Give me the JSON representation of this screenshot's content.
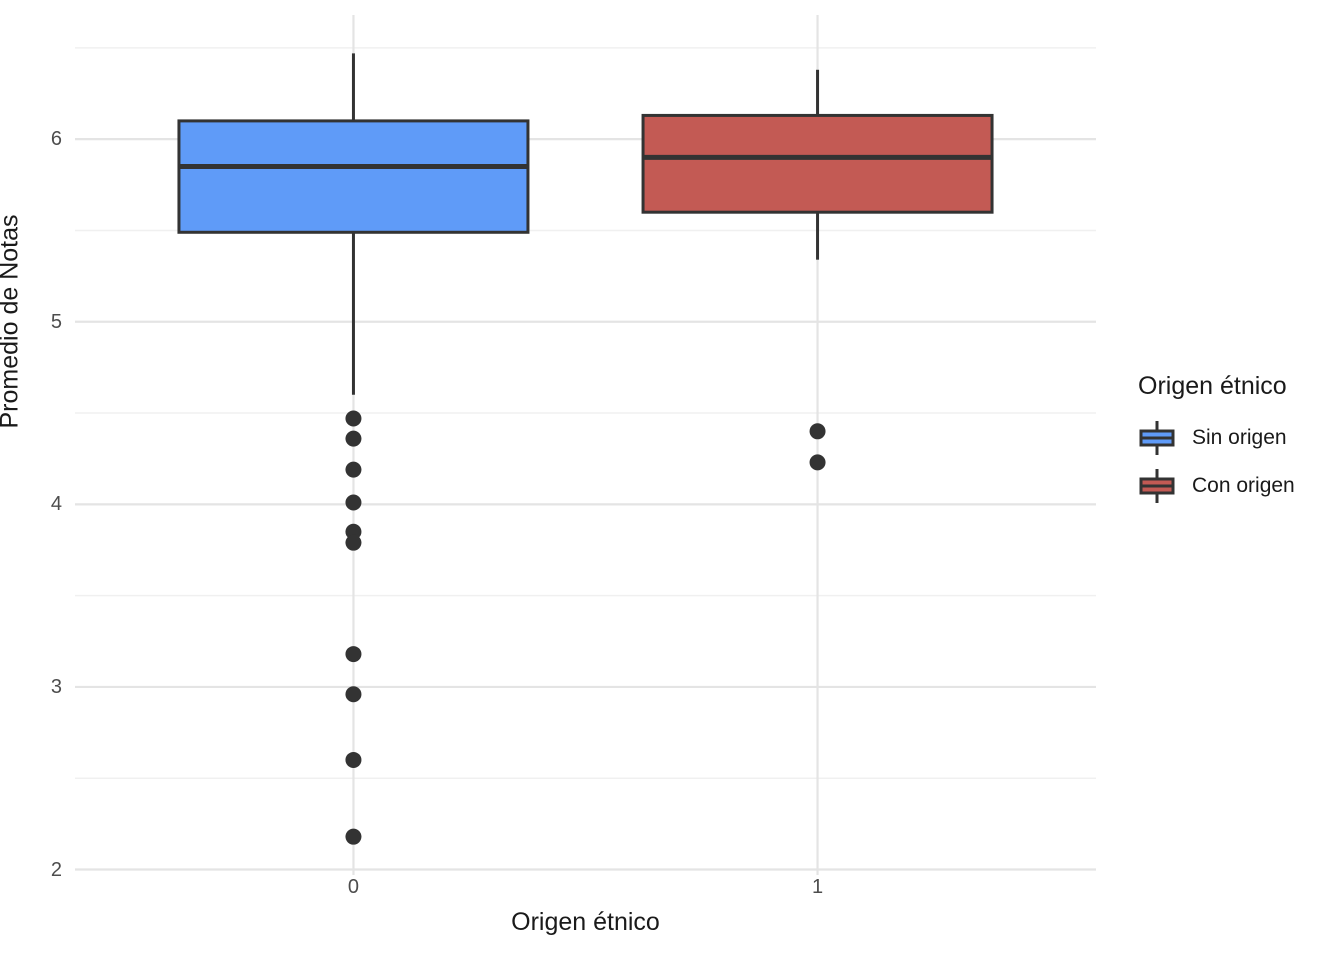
{
  "chart_data": {
    "type": "boxplot",
    "title": "",
    "xlabel": "Origen étnico",
    "ylabel": "Promedio de Notas",
    "categories": [
      "0",
      "1"
    ],
    "ylim": [
      1.97,
      6.68
    ],
    "yticks": [
      2,
      3,
      4,
      5,
      6
    ],
    "yticks_minor": [
      2.5,
      3.5,
      4.5,
      5.5,
      6.5
    ],
    "grid": "horizontal major+minor light gray, vertical major at each category, white background (ggplot theme_minimal)",
    "legend": {
      "title": "Origen étnico",
      "position": "right",
      "entries": [
        {
          "label": "Sin origen",
          "color": "#5F9BF8"
        },
        {
          "label": "Con origen",
          "color": "#C35A54"
        }
      ]
    },
    "series": [
      {
        "name": "Sin origen",
        "category": "0",
        "fill": "#5F9BF8",
        "whisker_high": 6.47,
        "q3": 6.1,
        "median": 5.85,
        "q1": 5.49,
        "whisker_low": 4.6,
        "outliers": [
          4.47,
          4.36,
          4.19,
          4.01,
          3.85,
          3.79,
          3.18,
          2.96,
          2.6,
          2.18
        ]
      },
      {
        "name": "Con origen",
        "category": "1",
        "fill": "#C35A54",
        "whisker_high": 6.38,
        "q3": 6.13,
        "median": 5.9,
        "q1": 5.6,
        "whisker_low": 5.34,
        "outliers": [
          4.4,
          4.23
        ]
      }
    ],
    "colors": {
      "stroke": "#333333",
      "outlier": "#333333",
      "grid_major": "#e4e4e4",
      "grid_minor": "#f0f0f0",
      "axis_text": "#4d4d4d",
      "title_text": "#1a1a1a",
      "background": "#ffffff"
    }
  }
}
